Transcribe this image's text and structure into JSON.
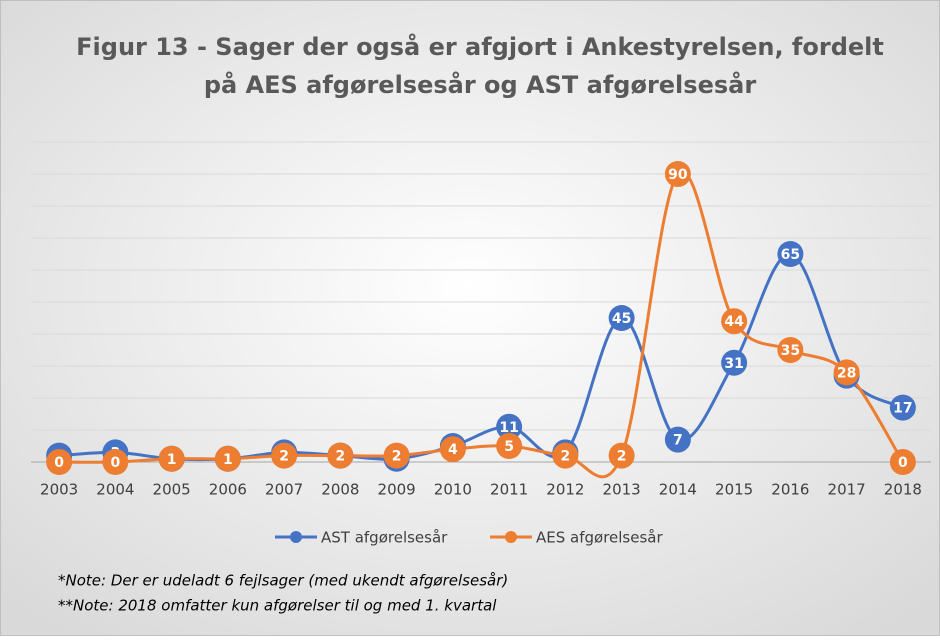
{
  "chart_data": {
    "type": "line",
    "title": "Figur 13 - Sager der også er afgjort i Ankestyrelsen, fordelt",
    "subtitle": "på AES afgørelsesår og AST afgørelsesår",
    "categories": [
      "2003",
      "2004",
      "2005",
      "2006",
      "2007",
      "2008",
      "2009",
      "2010",
      "2011",
      "2012",
      "2013",
      "2014",
      "2015",
      "2016",
      "2017",
      "2018"
    ],
    "series": [
      {
        "name": "AST afgørelsesår",
        "color": "#4472c4",
        "values": [
          2,
          3,
          1,
          1,
          3,
          2,
          1,
          5,
          11,
          3,
          45,
          7,
          31,
          65,
          27,
          17
        ]
      },
      {
        "name": "AES afgørelsesår",
        "color": "#ed7d31",
        "values": [
          0,
          0,
          1,
          1,
          2,
          2,
          2,
          4,
          5,
          2,
          2,
          90,
          44,
          35,
          28,
          0
        ]
      }
    ],
    "ylim": [
      0,
      100
    ],
    "yticks": [
      0,
      10,
      20,
      30,
      40,
      50,
      60,
      70,
      80,
      90,
      100
    ],
    "grid": true,
    "legend": "bottom",
    "annotations": [
      "*Note: Der er udeladt 6 fejlsager (med ukendt afgørelsesår)",
      "**Note: 2018 omfatter kun afgørelser til og med 1. kvartal"
    ]
  }
}
